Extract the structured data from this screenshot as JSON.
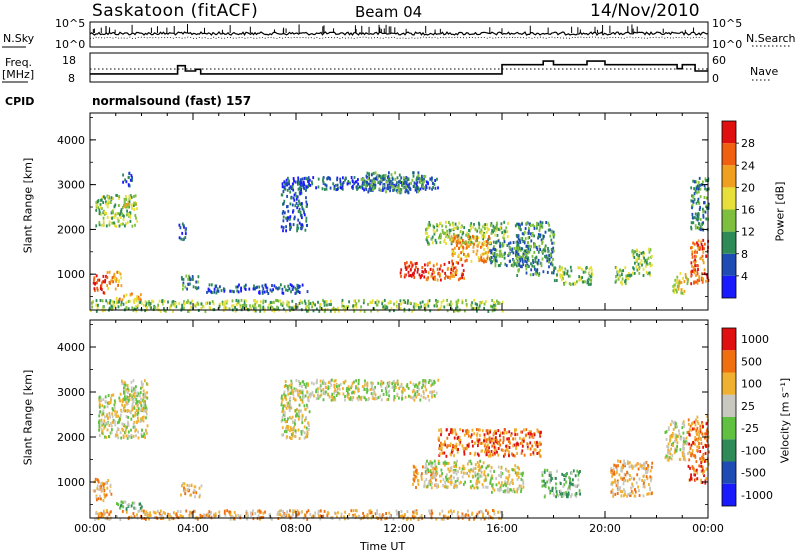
{
  "header": {
    "station": "Saskatoon (fitACF)",
    "beam": "Beam 04",
    "date": "14/Nov/2010",
    "cpid_value": "normalsound (fast) 157"
  },
  "left_labels": {
    "nsky": "N.Sky",
    "freq_line1": "Freq.",
    "freq_line2": "[MHz]",
    "cpid": "CPID"
  },
  "right_labels": {
    "nsearch": "N.Search",
    "nave": "Nave"
  },
  "chart_data": [
    {
      "type": "line",
      "name": "noise-panel",
      "y_ticks_left": [
        "10^5",
        "10^0"
      ],
      "y_ticks_right": [
        "10^5",
        "10^0"
      ],
      "series": [
        {
          "name": "N.Sky",
          "style": "solid"
        },
        {
          "name": "N.Search",
          "style": "dotted"
        }
      ]
    },
    {
      "type": "line",
      "name": "freq-nave-panel",
      "y_ticks_left": [
        "18",
        "8"
      ],
      "y_ticks_right": [
        "60",
        "0"
      ],
      "ylim_left": [
        8,
        18
      ],
      "ylim_right": [
        0,
        60
      ],
      "x_hours": [
        0,
        3.4,
        3.4,
        3.7,
        3.7,
        4.1,
        4.1,
        4.3,
        4.3,
        16,
        16,
        17.6,
        17.6,
        18,
        18,
        19.3,
        19.3,
        20,
        20,
        22.8,
        22.8,
        23,
        23,
        23.5,
        23.5,
        24
      ],
      "freq_mhz": [
        10.2,
        10.2,
        13.8,
        13.8,
        11.5,
        11.5,
        12.2,
        12.2,
        10.2,
        10.2,
        14.2,
        14.2,
        15.8,
        15.8,
        14.2,
        14.2,
        15.8,
        15.8,
        14.2,
        14.2,
        12.5,
        12.5,
        14.2,
        14.2,
        11.5,
        11.5
      ],
      "series": [
        {
          "name": "Freq",
          "style": "solid"
        },
        {
          "name": "Nave",
          "style": "dotted"
        }
      ]
    },
    {
      "type": "heatmap",
      "name": "power-panel",
      "xlabel": "",
      "ylabel": "Slant Range [km]",
      "y_ticks": [
        1000,
        2000,
        3000,
        4000
      ],
      "ylim": [
        200,
        4600
      ],
      "xlim_hours": [
        0,
        24
      ],
      "colorbar_label": "Power [dB]",
      "colorbar_ticks": [
        4,
        8,
        12,
        16,
        20,
        24,
        28
      ],
      "colorbar_colors": [
        "#1a1aff",
        "#1e4cb4",
        "#2e8b57",
        "#7fbf3f",
        "#e8e03a",
        "#f0a020",
        "#f06010",
        "#e01010"
      ],
      "scatter_regions": [
        {
          "t0": 0.1,
          "t1": 0.6,
          "r0": 600,
          "r1": 1000,
          "level": 7
        },
        {
          "t0": 0.6,
          "t1": 1.2,
          "r0": 700,
          "r1": 1100,
          "level": 5
        },
        {
          "t0": 1.0,
          "t1": 2.0,
          "r0": 380,
          "r1": 600,
          "level": 5
        },
        {
          "t0": 0.2,
          "t1": 1.8,
          "r0": 2100,
          "r1": 2800,
          "level": 3
        },
        {
          "t0": 1.3,
          "t1": 1.8,
          "r0": 2500,
          "r1": 2800,
          "level": 4
        },
        {
          "t0": 1.2,
          "t1": 1.6,
          "r0": 3000,
          "r1": 3300,
          "level": 1
        },
        {
          "t0": 3.5,
          "t1": 4.2,
          "r0": 700,
          "r1": 1000,
          "level": 2
        },
        {
          "t0": 3.4,
          "t1": 3.7,
          "r0": 1800,
          "r1": 2200,
          "level": 1
        },
        {
          "t0": 4.5,
          "t1": 8.5,
          "r0": 600,
          "r1": 800,
          "level": 1
        },
        {
          "t0": 7.4,
          "t1": 8.4,
          "r0": 2000,
          "r1": 3100,
          "level": 1
        },
        {
          "t0": 7.5,
          "t1": 13.5,
          "r0": 2900,
          "r1": 3200,
          "level": 1
        },
        {
          "t0": 10.5,
          "t1": 13.0,
          "r0": 2850,
          "r1": 3300,
          "level": 2
        },
        {
          "t0": 12.0,
          "t1": 13.0,
          "r0": 950,
          "r1": 1300,
          "level": 7
        },
        {
          "t0": 13.0,
          "t1": 14.5,
          "r0": 900,
          "r1": 1300,
          "level": 6
        },
        {
          "t0": 13.0,
          "t1": 16.2,
          "r0": 1700,
          "r1": 2200,
          "level": 3
        },
        {
          "t0": 14.0,
          "t1": 15.5,
          "r0": 1300,
          "r1": 1900,
          "level": 5
        },
        {
          "t0": 15.5,
          "t1": 17.0,
          "r0": 1200,
          "r1": 1800,
          "level": 2
        },
        {
          "t0": 16.5,
          "t1": 18.0,
          "r0": 1000,
          "r1": 2200,
          "level": 2
        },
        {
          "t0": 18.0,
          "t1": 19.5,
          "r0": 800,
          "r1": 1200,
          "level": 3
        },
        {
          "t0": 20.3,
          "t1": 21.0,
          "r0": 800,
          "r1": 1200,
          "level": 3
        },
        {
          "t0": 21.0,
          "t1": 21.8,
          "r0": 1000,
          "r1": 1600,
          "level": 3
        },
        {
          "t0": 22.6,
          "t1": 23.2,
          "r0": 600,
          "r1": 1100,
          "level": 4
        },
        {
          "t0": 23.3,
          "t1": 24.0,
          "r0": 800,
          "r1": 1800,
          "level": 6
        },
        {
          "t0": 23.3,
          "t1": 24.0,
          "r0": 2000,
          "r1": 3200,
          "level": 2
        },
        {
          "t0": 0.0,
          "t1": 16.0,
          "r0": 200,
          "r1": 450,
          "level": 3
        }
      ]
    },
    {
      "type": "heatmap",
      "name": "velocity-panel",
      "xlabel": "Time UT",
      "ylabel": "Slant Range [km]",
      "y_ticks": [
        1000,
        2000,
        3000,
        4000
      ],
      "ylim": [
        200,
        4600
      ],
      "xlim_hours": [
        0,
        24
      ],
      "x_tick_labels": [
        "00:00",
        "04:00",
        "08:00",
        "12:00",
        "16:00",
        "20:00",
        "00:00"
      ],
      "colorbar_label": "Velocity [m s⁻¹]",
      "colorbar_ticks": [
        "1000",
        "500",
        "100",
        "25",
        "-25",
        "-100",
        "-500",
        "-1000"
      ],
      "colorbar_colors": [
        "#1a1aff",
        "#1e4cb4",
        "#2e8b57",
        "#60c040",
        "#c8c8c0",
        "#f0b030",
        "#f07010",
        "#e01010"
      ],
      "scatter_regions": [
        {
          "t0": 0.3,
          "t1": 2.2,
          "r0": 2000,
          "r1": 3000,
          "level": 4
        },
        {
          "t0": 1.2,
          "t1": 2.2,
          "r0": 2600,
          "r1": 3300,
          "level": 4
        },
        {
          "t0": 0.1,
          "t1": 0.8,
          "r0": 600,
          "r1": 1100,
          "level": 5
        },
        {
          "t0": 1.0,
          "t1": 2.0,
          "r0": 400,
          "r1": 600,
          "level": 3
        },
        {
          "t0": 3.5,
          "t1": 4.3,
          "r0": 700,
          "r1": 1000,
          "level": 5
        },
        {
          "t0": 7.4,
          "t1": 8.5,
          "r0": 2000,
          "r1": 3100,
          "level": 4
        },
        {
          "t0": 7.5,
          "t1": 13.5,
          "r0": 2850,
          "r1": 3300,
          "level": 4
        },
        {
          "t0": 12.5,
          "t1": 13.5,
          "r0": 900,
          "r1": 1400,
          "level": 5
        },
        {
          "t0": 13.5,
          "t1": 17.5,
          "r0": 1600,
          "r1": 2200,
          "level": 6
        },
        {
          "t0": 13.0,
          "t1": 15.5,
          "r0": 900,
          "r1": 1500,
          "level": 4
        },
        {
          "t0": 15.5,
          "t1": 16.8,
          "r0": 800,
          "r1": 1400,
          "level": 4
        },
        {
          "t0": 17.5,
          "t1": 19.0,
          "r0": 700,
          "r1": 1300,
          "level": 3
        },
        {
          "t0": 20.2,
          "t1": 21.8,
          "r0": 700,
          "r1": 1500,
          "level": 5
        },
        {
          "t0": 22.3,
          "t1": 23.2,
          "r0": 1500,
          "r1": 2400,
          "level": 4
        },
        {
          "t0": 23.2,
          "t1": 24.0,
          "r0": 1000,
          "r1": 2500,
          "level": 6
        },
        {
          "t0": 0.0,
          "t1": 16.0,
          "r0": 200,
          "r1": 400,
          "level": 5
        }
      ]
    }
  ]
}
